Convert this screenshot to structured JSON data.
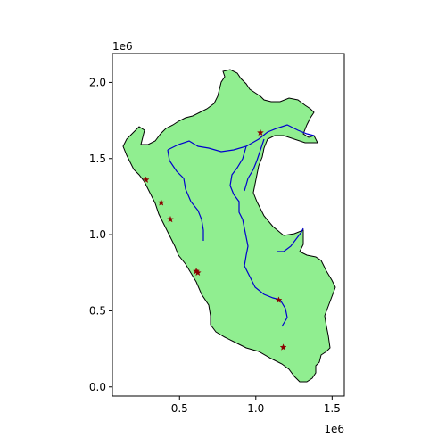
{
  "map": {
    "x_axis": {
      "ticks": [
        {
          "value": 0.5,
          "label": "0.5"
        },
        {
          "value": 1.0,
          "label": "1.0"
        },
        {
          "value": 1.5,
          "label": "1.5"
        }
      ],
      "offset_label": "1e6",
      "range": [
        0.06,
        1.58
      ]
    },
    "y_axis": {
      "ticks": [
        {
          "value": 0.0,
          "label": "0.0"
        },
        {
          "value": 0.5,
          "label": "0.5"
        },
        {
          "value": 1.0,
          "label": "1.0"
        },
        {
          "value": 1.5,
          "label": "1.5"
        },
        {
          "value": 2.0,
          "label": "2.0"
        }
      ],
      "offset_label": "1e6",
      "range": [
        -0.06,
        2.19
      ]
    },
    "region": {
      "fill_color": "#90ee90",
      "edge_color": "#000000"
    },
    "rivers": {
      "color": "#0000cd"
    },
    "markers": {
      "symbol": "star",
      "color": "#8b0000",
      "points": [
        {
          "x": 1.03,
          "y": 1.67
        },
        {
          "x": 0.28,
          "y": 1.36
        },
        {
          "x": 0.38,
          "y": 1.21
        },
        {
          "x": 0.44,
          "y": 1.1
        },
        {
          "x": 0.61,
          "y": 0.76
        },
        {
          "x": 0.62,
          "y": 0.75
        },
        {
          "x": 1.15,
          "y": 0.57
        },
        {
          "x": 1.18,
          "y": 0.26
        }
      ]
    }
  }
}
